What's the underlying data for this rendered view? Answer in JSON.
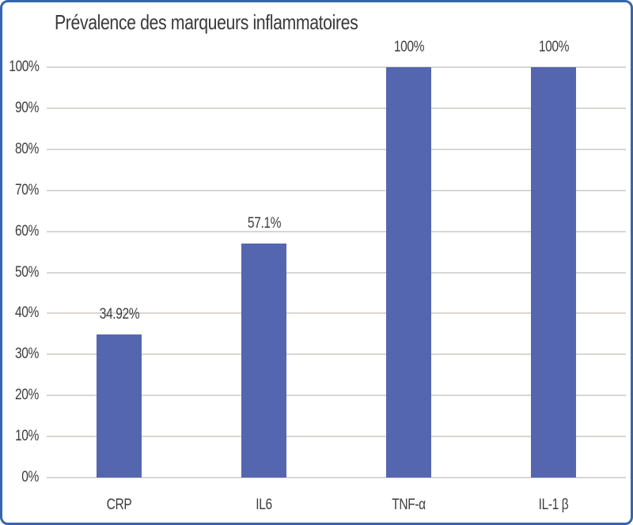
{
  "frame": {
    "border_color": "#3566ad",
    "background_color": "#ffffff"
  },
  "chart_data": {
    "type": "bar",
    "title": "Prévalence des marqueurs inflammatoires",
    "categories": [
      "CRP",
      "IL6",
      "TNF-α",
      "IL-1 β"
    ],
    "values": [
      34.92,
      57.1,
      100,
      100
    ],
    "data_labels": [
      "34.92%",
      "57.1%",
      "100%",
      "100%"
    ],
    "y_ticks": [
      "0%",
      "10%",
      "20%",
      "30%",
      "40%",
      "50%",
      "60%",
      "70%",
      "80%",
      "90%",
      "100%"
    ],
    "ylim": [
      0,
      100
    ],
    "xlabel": "",
    "ylabel": "",
    "grid": "horizontal",
    "legend": "none",
    "bar_color": "#5566b0",
    "gridline_color": "#d9d5d3",
    "text_color": "#3d3d3d"
  }
}
